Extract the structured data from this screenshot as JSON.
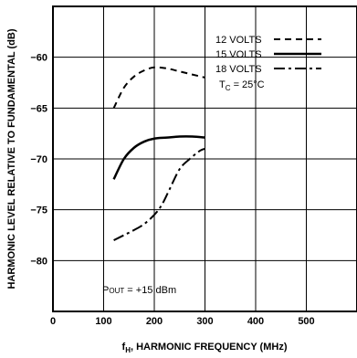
{
  "chart_data": {
    "type": "line",
    "title": "",
    "xlabel": "f_H, HARMONIC FREQUENCY (MHz)",
    "xlabel_main": "f",
    "xlabel_sub": "H",
    "xlabel_rest": ", HARMONIC FREQUENCY (MHz)",
    "ylabel": "HARMONIC LEVEL RELATIVE TO FUNDAMENTAL (dB)",
    "xlim": [
      0,
      600
    ],
    "ylim": [
      -85,
      -55
    ],
    "x_ticks": [
      0,
      100,
      200,
      300,
      400,
      500
    ],
    "x_tick_labels": [
      "0",
      "100",
      "200",
      "300",
      "400",
      "500"
    ],
    "y_ticks": [
      -60,
      -65,
      -70,
      -75,
      -80
    ],
    "y_tick_labels": [
      "−60",
      "−65",
      "−70",
      "−75",
      "−80"
    ],
    "grid": true,
    "legend_placement": "top-right",
    "series": [
      {
        "name": "12 VOLTS",
        "style": "dashed",
        "x": [
          120,
          140,
          160,
          180,
          200,
          225,
          250,
          275,
          300
        ],
        "y": [
          -65.0,
          -63.0,
          -61.9,
          -61.3,
          -61.0,
          -61.1,
          -61.4,
          -61.7,
          -62.0
        ]
      },
      {
        "name": "15 VOLTS",
        "style": "solid",
        "x": [
          120,
          140,
          160,
          180,
          200,
          225,
          250,
          275,
          300
        ],
        "y": [
          -72.0,
          -70.0,
          -68.9,
          -68.3,
          -68.0,
          -67.9,
          -67.8,
          -67.8,
          -67.9
        ]
      },
      {
        "name": "18 VOLTS",
        "style": "dash-dot",
        "x": [
          120,
          140,
          160,
          180,
          200,
          215,
          230,
          250,
          270,
          290,
          300
        ],
        "y": [
          -78.0,
          -77.5,
          -77.0,
          -76.4,
          -75.5,
          -74.5,
          -73.0,
          -71.0,
          -70.0,
          -69.2,
          -69.0
        ]
      }
    ],
    "annotations": {
      "temperature_main": "T",
      "temperature_sub": "C",
      "temperature_rest": " = 25°C",
      "pout_main": "P",
      "pout_sub": "OUT",
      "pout_rest": " = +15 dBm"
    }
  }
}
